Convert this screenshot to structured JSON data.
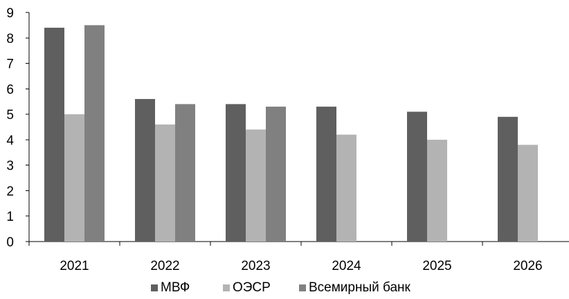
{
  "chart_data": {
    "type": "bar",
    "title": "",
    "xlabel": "",
    "ylabel": "",
    "categories": [
      "2021",
      "2022",
      "2023",
      "2024",
      "2025",
      "2026"
    ],
    "series": [
      {
        "name": "МВФ",
        "color": "#5f5f5f",
        "values": [
          8.4,
          5.6,
          5.4,
          5.3,
          5.1,
          4.9
        ]
      },
      {
        "name": "ОЭСР",
        "color": "#b3b3b3",
        "values": [
          5.0,
          4.6,
          4.4,
          4.2,
          4.0,
          3.8
        ]
      },
      {
        "name": "Всемирный банк",
        "color": "#808080",
        "values": [
          8.5,
          5.4,
          5.3,
          null,
          null,
          null
        ]
      }
    ],
    "ylim": [
      0,
      9
    ],
    "yticks": [
      "0",
      "1",
      "2",
      "3",
      "4",
      "5",
      "6",
      "7",
      "8",
      "9"
    ],
    "grid": false,
    "legend_position": "bottom"
  }
}
